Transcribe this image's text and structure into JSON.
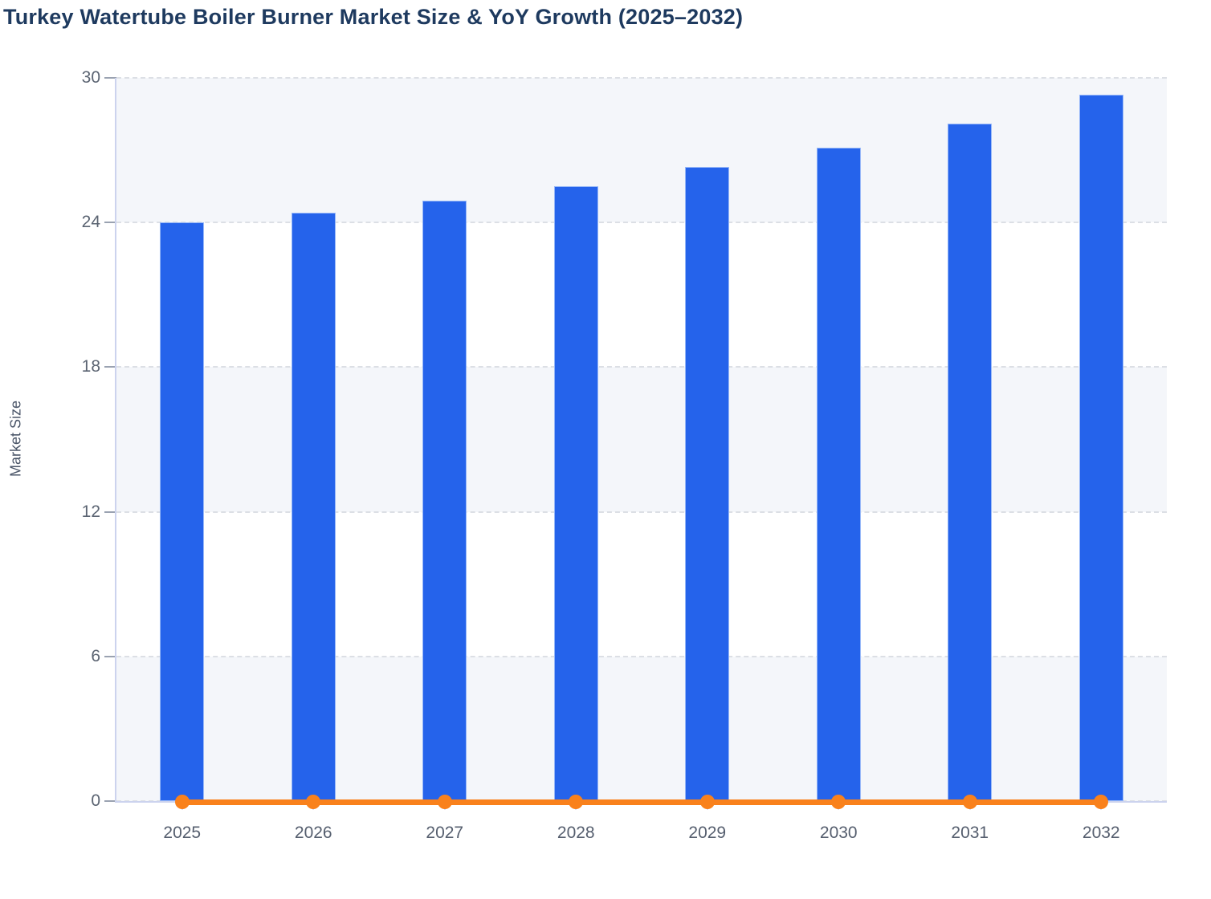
{
  "chart_data": {
    "type": "bar",
    "title": "Turkey Watertube Boiler Burner Market Size & YoY Growth (2025–2032)",
    "xlabel": "",
    "ylabel": "Market Size",
    "categories": [
      "2025",
      "2026",
      "2027",
      "2028",
      "2029",
      "2030",
      "2031",
      "2032"
    ],
    "series": [
      {
        "name": "Market Size",
        "type": "bar",
        "color": "#2563eb",
        "values": [
          24.0,
          24.4,
          24.9,
          25.5,
          26.3,
          27.1,
          28.1,
          29.3
        ]
      },
      {
        "name": "YoY Growth",
        "type": "line",
        "color": "#f9811c",
        "marker": "circle",
        "values": [
          0.02,
          0.02,
          0.02,
          0.02,
          0.03,
          0.03,
          0.04,
          0.04
        ]
      }
    ],
    "ylim": [
      0,
      30
    ],
    "yticks": [
      0,
      6,
      12,
      18,
      24,
      30
    ],
    "grid": "horizontal-dashed",
    "plot_bands": "alternating-horizontal",
    "legend_position": "none"
  },
  "colors": {
    "bar": "#2563eb",
    "line": "#f9811c",
    "title_text": "#1e3a5f",
    "axis_text": "#5b6472",
    "band_fill": "#f4f6fa",
    "gridline": "#dcdfe5",
    "axis_line": "#ccd3ee"
  }
}
